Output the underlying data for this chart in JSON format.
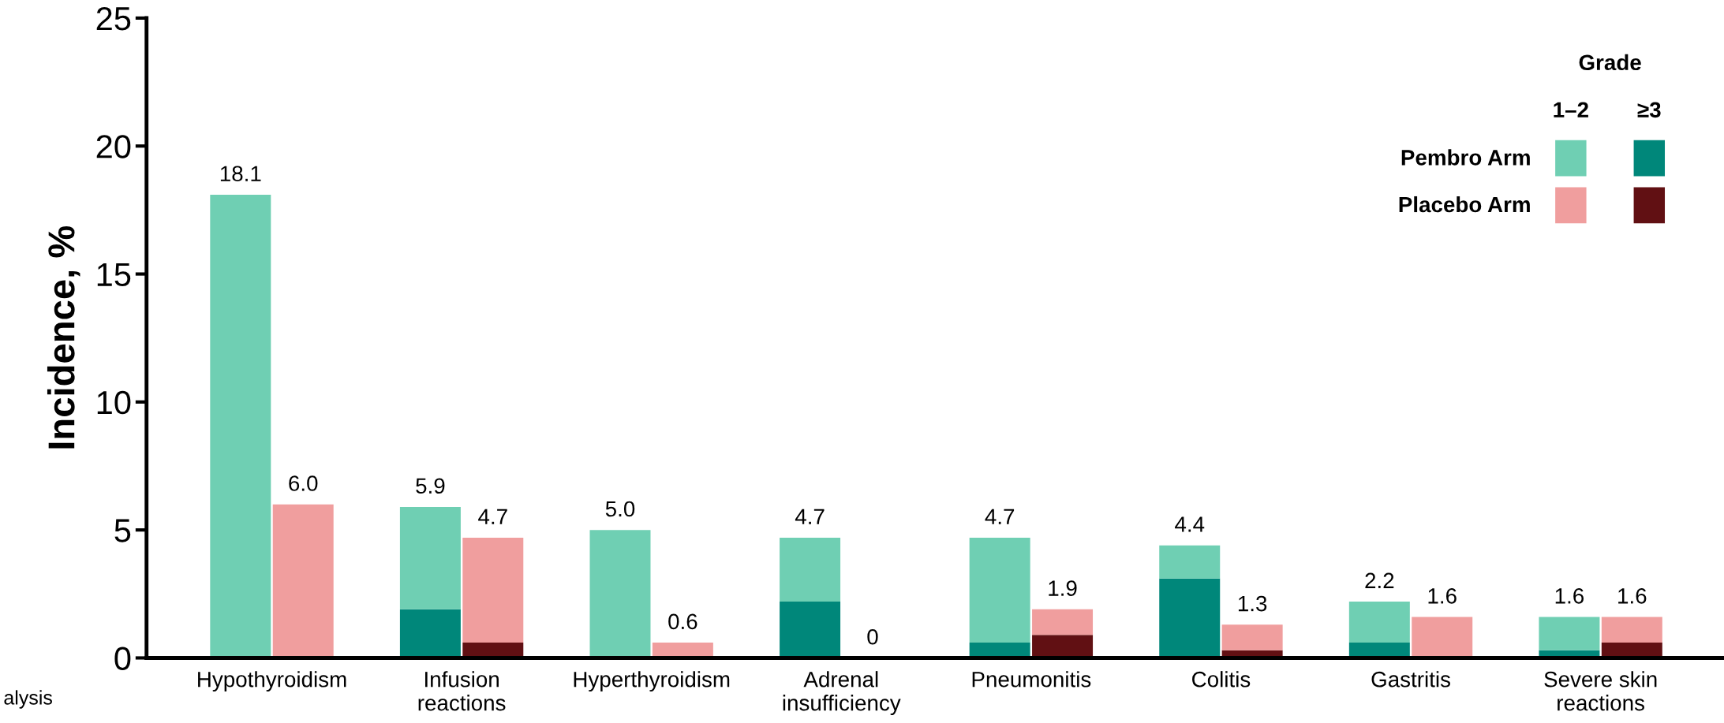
{
  "chart_data": {
    "type": "bar",
    "stacked": true,
    "ylabel": "Incidence, %",
    "legend_title": "Grade",
    "legend": "top right",
    "categories": [
      null,
      null,
      null,
      null,
      null,
      null,
      null,
      null,
      null,
      null,
      null,
      null,
      null,
      null,
      null,
      null
    ],
    "series": [
      {
        "color": "#00877a",
        "values": [
          0,
          null,
          1.9,
          null,
          0,
          null,
          2.2,
          null,
          0.6,
          null,
          3.1,
          null,
          0.6,
          null,
          0.3,
          null
        ]
      },
      {
        "name": "Pembro Arm",
        "color": "#6fcfb3",
        "values": [
          18.1,
          null,
          4.0,
          null,
          5.0,
          null,
          2.5,
          null,
          4.1,
          null,
          1.3,
          null,
          1.6,
          null,
          1.3,
          null
        ]
      },
      {
        "color": "#611013",
        "values": [
          null,
          0,
          null,
          0.6,
          null,
          0,
          null,
          0,
          null,
          0.9,
          null,
          0.3,
          null,
          0,
          null,
          0.6
        ]
      },
      {
        "name": "Placebo Arm",
        "color": "#f09e9e",
        "values": [
          null,
          6.0,
          null,
          4.1,
          null,
          0.6,
          null,
          0,
          null,
          1.0,
          null,
          1.0,
          null,
          1.6,
          null,
          1.0
        ]
      }
    ],
    "totals": [
      "18.1",
      "6.0",
      "5.9",
      "4.7",
      "5.0",
      "0.6",
      "4.7",
      "0",
      "4.7",
      "1.9",
      "4.4",
      "1.3",
      "2.2",
      "1.6",
      "1.6",
      "1.6"
    ],
    "ylim": [
      0,
      25
    ],
    "yticks": [
      0,
      5,
      10,
      15,
      20,
      25
    ],
    "grid": false,
    "annotations": [
      "Hypothyroidism",
      "Infusion\nreactions",
      "Hyperthyroidism",
      "Adrenal\ninsufficiency",
      "Pneumonitis",
      "Colitis",
      "Gastritis",
      "Severe skin\nreactions",
      "1–2",
      "≥3",
      "alysis"
    ]
  }
}
